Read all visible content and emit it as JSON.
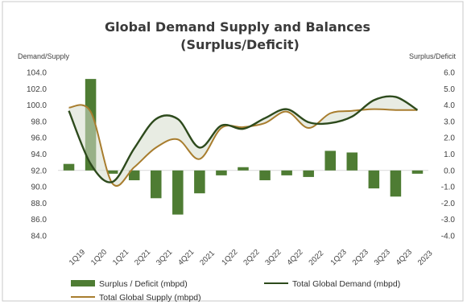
{
  "chart_data": {
    "type": "bar+line",
    "title_line1": "Global Demand Supply and Balances",
    "title_line2": "(Surplus/Deficit)",
    "y_left_label": "Demand/Supply",
    "y_right_label": "Surplus/Deficit",
    "y_left_lim": [
      84.0,
      104.0
    ],
    "y_left_ticks": [
      "84.0",
      "86.0",
      "88.0",
      "90.0",
      "92.0",
      "94.0",
      "96.0",
      "98.0",
      "100.0",
      "102.0",
      "104.0"
    ],
    "y_right_lim": [
      -4.0,
      6.0
    ],
    "y_right_ticks": [
      "-4.0",
      "-3.0",
      "-2.0",
      "-1.0",
      "0.0",
      "1.0",
      "2.0",
      "3.0",
      "4.0",
      "5.0",
      "6.0"
    ],
    "categories": [
      "1Q19",
      "1Q20",
      "1Q21",
      "2Q21",
      "3Q21",
      "4Q21",
      "2021",
      "1Q22",
      "2Q22",
      "3Q22",
      "4Q22",
      "2022",
      "1Q23",
      "2Q23",
      "3Q23",
      "4Q23",
      "2023"
    ],
    "series": [
      {
        "name": "Surplus / Deficit (mbpd)",
        "kind": "bar",
        "axis": "right",
        "color": "#4e7c33",
        "values": [
          0.4,
          5.6,
          -0.2,
          -0.6,
          -1.7,
          -2.7,
          -1.4,
          -0.3,
          0.2,
          -0.6,
          -0.3,
          -0.4,
          1.2,
          1.1,
          -1.1,
          -1.6,
          -0.2
        ]
      },
      {
        "name": "Total Global Demand (mbpd)",
        "kind": "line",
        "axis": "left",
        "color": "#2d4a1c",
        "values": [
          99.3,
          92.8,
          90.6,
          94.7,
          98.3,
          98.3,
          94.8,
          97.5,
          97.1,
          98.4,
          99.5,
          97.9,
          97.8,
          98.6,
          100.6,
          101.0,
          99.4
        ]
      },
      {
        "name": "Total Global Supply (mbpd)",
        "kind": "line",
        "axis": "left",
        "color": "#a87d2e",
        "values": [
          99.7,
          99.2,
          90.4,
          92.4,
          94.8,
          95.8,
          93.4,
          97.2,
          97.3,
          97.8,
          99.2,
          97.2,
          99.0,
          99.3,
          99.5,
          99.4,
          99.4
        ]
      }
    ],
    "grid": false,
    "legend_position": "bottom"
  }
}
